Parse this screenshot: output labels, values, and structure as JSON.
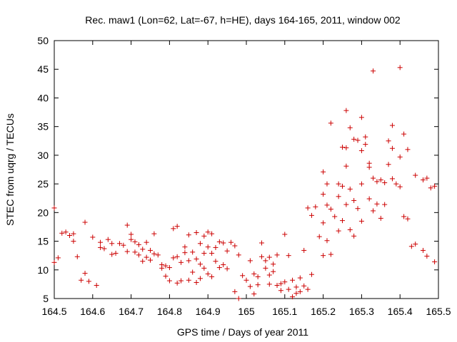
{
  "chart_data": {
    "type": "scatter",
    "title": "Rec. maw1 (Lon=62, Lat=-67, h=HE), days 164-165, 2011, window 002",
    "xlabel": "GPS time / Days of year 2011",
    "ylabel": "STEC from uqrg / TECUs",
    "xlim": [
      164.5,
      165.5
    ],
    "ylim": [
      5,
      50
    ],
    "xticks": [
      "164.5",
      "164.6",
      "164.7",
      "164.8",
      "164.9",
      "165",
      "165.1",
      "165.2",
      "165.3",
      "165.4",
      "165.5"
    ],
    "yticks": [
      "5",
      "10",
      "15",
      "20",
      "25",
      "30",
      "35",
      "40",
      "45",
      "50"
    ],
    "grid": false,
    "marker": "plus",
    "color": "#cc0000",
    "series": [
      {
        "points": [
          [
            164.5,
            20.8
          ],
          [
            164.5,
            11.3
          ],
          [
            164.51,
            12.1
          ],
          [
            164.52,
            16.4
          ],
          [
            164.53,
            16.6
          ],
          [
            164.54,
            16.0
          ],
          [
            164.55,
            16.3
          ],
          [
            164.55,
            15.0
          ],
          [
            164.56,
            12.3
          ],
          [
            164.57,
            8.2
          ],
          [
            164.58,
            18.3
          ],
          [
            164.58,
            9.4
          ],
          [
            164.59,
            8.0
          ],
          [
            164.6,
            15.7
          ],
          [
            164.61,
            7.3
          ],
          [
            164.62,
            14.8
          ],
          [
            164.62,
            13.9
          ],
          [
            164.63,
            13.7
          ],
          [
            164.64,
            15.3
          ],
          [
            164.65,
            14.6
          ],
          [
            164.65,
            12.7
          ],
          [
            164.66,
            12.9
          ],
          [
            164.67,
            14.6
          ],
          [
            164.68,
            14.3
          ],
          [
            164.69,
            17.8
          ],
          [
            164.69,
            13.2
          ],
          [
            164.7,
            16.2
          ],
          [
            164.7,
            15.3
          ],
          [
            164.71,
            14.9
          ],
          [
            164.71,
            13.1
          ],
          [
            164.72,
            14.4
          ],
          [
            164.72,
            12.6
          ],
          [
            164.73,
            13.6
          ],
          [
            164.73,
            11.5
          ],
          [
            164.74,
            14.8
          ],
          [
            164.74,
            12.2
          ],
          [
            164.75,
            13.4
          ],
          [
            164.75,
            11.7
          ],
          [
            164.76,
            16.3
          ],
          [
            164.76,
            12.8
          ],
          [
            164.77,
            12.6
          ],
          [
            164.78,
            10.9
          ],
          [
            164.78,
            10.3
          ],
          [
            164.79,
            8.9
          ],
          [
            164.79,
            10.7
          ],
          [
            164.8,
            10.4
          ],
          [
            164.8,
            8.1
          ],
          [
            164.81,
            17.2
          ],
          [
            164.81,
            12.1
          ],
          [
            164.82,
            17.6
          ],
          [
            164.82,
            12.3
          ],
          [
            164.82,
            7.7
          ],
          [
            164.83,
            11.3
          ],
          [
            164.83,
            8.1
          ],
          [
            164.84,
            14.0
          ],
          [
            164.84,
            13.0
          ],
          [
            164.85,
            16.1
          ],
          [
            164.85,
            11.6
          ],
          [
            164.85,
            8.2
          ],
          [
            164.86,
            13.1
          ],
          [
            164.86,
            9.6
          ],
          [
            164.87,
            16.5
          ],
          [
            164.87,
            11.9
          ],
          [
            164.87,
            7.8
          ],
          [
            164.88,
            14.6
          ],
          [
            164.88,
            11.0
          ],
          [
            164.88,
            8.5
          ],
          [
            164.89,
            15.9
          ],
          [
            164.89,
            12.9
          ],
          [
            164.89,
            10.3
          ],
          [
            164.9,
            16.6
          ],
          [
            164.9,
            14.0
          ],
          [
            164.9,
            9.3
          ],
          [
            164.91,
            16.3
          ],
          [
            164.91,
            12.9
          ],
          [
            164.91,
            8.8
          ],
          [
            164.92,
            13.9
          ],
          [
            164.92,
            11.5
          ],
          [
            164.93,
            14.9
          ],
          [
            164.93,
            10.4
          ],
          [
            164.94,
            14.7
          ],
          [
            164.94,
            10.9
          ],
          [
            164.95,
            13.3
          ],
          [
            164.95,
            10.2
          ],
          [
            164.96,
            14.8
          ],
          [
            164.97,
            14.2
          ],
          [
            164.97,
            6.2
          ],
          [
            164.98,
            12.6
          ],
          [
            164.98,
            5.0
          ],
          [
            164.99,
            9.0
          ],
          [
            165.0,
            8.2
          ],
          [
            165.01,
            11.6
          ],
          [
            165.01,
            7.1
          ],
          [
            165.02,
            9.3
          ],
          [
            165.02,
            5.8
          ],
          [
            165.03,
            8.8
          ],
          [
            165.03,
            7.4
          ],
          [
            165.04,
            14.7
          ],
          [
            165.04,
            12.3
          ],
          [
            165.05,
            11.6
          ],
          [
            165.05,
            10.3
          ],
          [
            165.06,
            12.2
          ],
          [
            165.06,
            9.1
          ],
          [
            165.06,
            7.5
          ],
          [
            165.07,
            11.0
          ],
          [
            165.07,
            9.7
          ],
          [
            165.08,
            12.6
          ],
          [
            165.08,
            7.3
          ],
          [
            165.09,
            7.6
          ],
          [
            165.09,
            6.4
          ],
          [
            165.1,
            16.2
          ],
          [
            165.1,
            7.9
          ],
          [
            165.11,
            12.5
          ],
          [
            165.11,
            6.6
          ],
          [
            165.12,
            8.2
          ],
          [
            165.12,
            5.3
          ],
          [
            165.13,
            7.0
          ],
          [
            165.13,
            5.9
          ],
          [
            165.14,
            8.6
          ],
          [
            165.14,
            6.2
          ],
          [
            165.15,
            13.4
          ],
          [
            165.15,
            7.2
          ],
          [
            165.16,
            20.8
          ],
          [
            165.16,
            6.6
          ],
          [
            165.17,
            19.5
          ],
          [
            165.17,
            9.2
          ],
          [
            165.18,
            21.0
          ],
          [
            165.19,
            15.8
          ],
          [
            165.2,
            27.1
          ],
          [
            165.2,
            23.2
          ],
          [
            165.2,
            18.2
          ],
          [
            165.2,
            12.5
          ],
          [
            165.21,
            25.0
          ],
          [
            165.21,
            21.3
          ],
          [
            165.21,
            15.1
          ],
          [
            165.22,
            35.6
          ],
          [
            165.22,
            20.6
          ],
          [
            165.22,
            12.7
          ],
          [
            165.23,
            19.3
          ],
          [
            165.24,
            25.0
          ],
          [
            165.24,
            22.8
          ],
          [
            165.24,
            16.8
          ],
          [
            165.25,
            31.4
          ],
          [
            165.25,
            24.6
          ],
          [
            165.25,
            18.6
          ],
          [
            165.26,
            37.8
          ],
          [
            165.26,
            31.3
          ],
          [
            165.26,
            28.1
          ],
          [
            165.26,
            21.4
          ],
          [
            165.27,
            34.8
          ],
          [
            165.27,
            24.1
          ],
          [
            165.27,
            17.0
          ],
          [
            165.28,
            32.8
          ],
          [
            165.28,
            22.1
          ],
          [
            165.28,
            15.9
          ],
          [
            165.29,
            32.6
          ],
          [
            165.29,
            20.7
          ],
          [
            165.3,
            36.6
          ],
          [
            165.3,
            30.8
          ],
          [
            165.3,
            25.0
          ],
          [
            165.3,
            18.5
          ],
          [
            165.31,
            33.2
          ],
          [
            165.31,
            31.9
          ],
          [
            165.32,
            28.6
          ],
          [
            165.32,
            27.9
          ],
          [
            165.32,
            22.4
          ],
          [
            165.33,
            44.7
          ],
          [
            165.33,
            26.0
          ],
          [
            165.33,
            20.3
          ],
          [
            165.34,
            25.4
          ],
          [
            165.34,
            21.5
          ],
          [
            165.35,
            25.7
          ],
          [
            165.35,
            19.0
          ],
          [
            165.36,
            25.2
          ],
          [
            165.36,
            21.4
          ],
          [
            165.37,
            32.5
          ],
          [
            165.37,
            28.4
          ],
          [
            165.38,
            31.2
          ],
          [
            165.38,
            35.2
          ],
          [
            165.38,
            25.9
          ],
          [
            165.39,
            25.0
          ],
          [
            165.4,
            45.3
          ],
          [
            165.4,
            29.7
          ],
          [
            165.4,
            24.5
          ],
          [
            165.41,
            33.7
          ],
          [
            165.41,
            19.3
          ],
          [
            165.42,
            31.0
          ],
          [
            165.42,
            18.9
          ],
          [
            165.43,
            14.1
          ],
          [
            165.44,
            14.5
          ],
          [
            165.44,
            26.5
          ],
          [
            165.46,
            25.7
          ],
          [
            165.46,
            13.4
          ],
          [
            165.47,
            26.0
          ],
          [
            165.47,
            12.4
          ],
          [
            165.48,
            24.3
          ],
          [
            165.49,
            11.4
          ],
          [
            165.49,
            24.6
          ]
        ]
      }
    ]
  }
}
